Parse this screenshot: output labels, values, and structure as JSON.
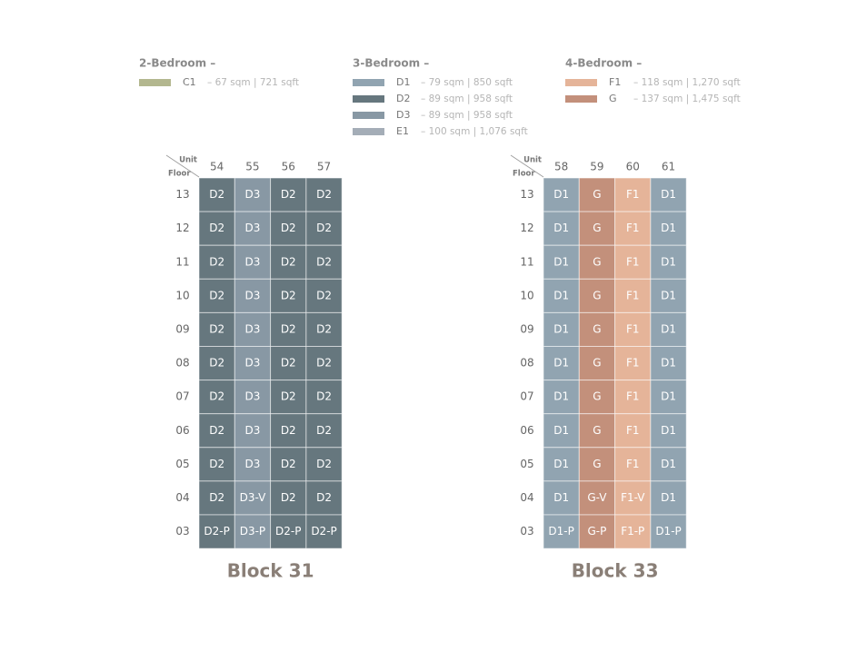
{
  "legend": [
    {
      "title": "2-Bedroom –",
      "items": [
        {
          "code": "C1",
          "desc": "– 67 sqm | 721 sqft",
          "color": "#b3b78f"
        }
      ]
    },
    {
      "title": "3-Bedroom –",
      "items": [
        {
          "code": "D1",
          "desc": "– 79 sqm | 850 sqft",
          "color": "#91a4b1"
        },
        {
          "code": "D2",
          "desc": "– 89 sqm | 958 sqft",
          "color": "#66777e"
        },
        {
          "code": "D3",
          "desc": "– 89 sqm | 958 sqft",
          "color": "#8898a4"
        },
        {
          "code": "E1",
          "desc": "– 100 sqm | 1,076 sqft",
          "color": "#a4adb7"
        }
      ]
    },
    {
      "title": "4-Bedroom –",
      "items": [
        {
          "code": "F1",
          "desc": "– 118 sqm | 1,270 sqft",
          "color": "#e5b499"
        },
        {
          "code": "G",
          "desc": "– 137 sqm | 1,475 sqft",
          "color": "#c3907b"
        }
      ]
    }
  ],
  "blocks": [
    {
      "title": "Block 31",
      "unit_label": "Unit",
      "floor_label": "Floor",
      "units": [
        "54",
        "55",
        "56",
        "57"
      ],
      "floors": [
        {
          "floor": "13",
          "cells": [
            "D2",
            "D3",
            "D2",
            "D2"
          ]
        },
        {
          "floor": "12",
          "cells": [
            "D2",
            "D3",
            "D2",
            "D2"
          ]
        },
        {
          "floor": "11",
          "cells": [
            "D2",
            "D3",
            "D2",
            "D2"
          ]
        },
        {
          "floor": "10",
          "cells": [
            "D2",
            "D3",
            "D2",
            "D2"
          ]
        },
        {
          "floor": "09",
          "cells": [
            "D2",
            "D3",
            "D2",
            "D2"
          ]
        },
        {
          "floor": "08",
          "cells": [
            "D2",
            "D3",
            "D2",
            "D2"
          ]
        },
        {
          "floor": "07",
          "cells": [
            "D2",
            "D3",
            "D2",
            "D2"
          ]
        },
        {
          "floor": "06",
          "cells": [
            "D2",
            "D3",
            "D2",
            "D2"
          ]
        },
        {
          "floor": "05",
          "cells": [
            "D2",
            "D3",
            "D2",
            "D2"
          ]
        },
        {
          "floor": "04",
          "cells": [
            "D2",
            "D3-V",
            "D2",
            "D2"
          ]
        },
        {
          "floor": "03",
          "cells": [
            "D2-P",
            "D3-P",
            "D2-P",
            "D2-P"
          ]
        }
      ]
    },
    {
      "title": "Block 33",
      "unit_label": "Unit",
      "floor_label": "Floor",
      "units": [
        "58",
        "59",
        "60",
        "61"
      ],
      "floors": [
        {
          "floor": "13",
          "cells": [
            "D1",
            "G",
            "F1",
            "D1"
          ]
        },
        {
          "floor": "12",
          "cells": [
            "D1",
            "G",
            "F1",
            "D1"
          ]
        },
        {
          "floor": "11",
          "cells": [
            "D1",
            "G",
            "F1",
            "D1"
          ]
        },
        {
          "floor": "10",
          "cells": [
            "D1",
            "G",
            "F1",
            "D1"
          ]
        },
        {
          "floor": "09",
          "cells": [
            "D1",
            "G",
            "F1",
            "D1"
          ]
        },
        {
          "floor": "08",
          "cells": [
            "D1",
            "G",
            "F1",
            "D1"
          ]
        },
        {
          "floor": "07",
          "cells": [
            "D1",
            "G",
            "F1",
            "D1"
          ]
        },
        {
          "floor": "06",
          "cells": [
            "D1",
            "G",
            "F1",
            "D1"
          ]
        },
        {
          "floor": "05",
          "cells": [
            "D1",
            "G",
            "F1",
            "D1"
          ]
        },
        {
          "floor": "04",
          "cells": [
            "D1",
            "G-V",
            "F1-V",
            "D1"
          ]
        },
        {
          "floor": "03",
          "cells": [
            "D1-P",
            "G-P",
            "F1-P",
            "D1-P"
          ]
        }
      ]
    }
  ]
}
